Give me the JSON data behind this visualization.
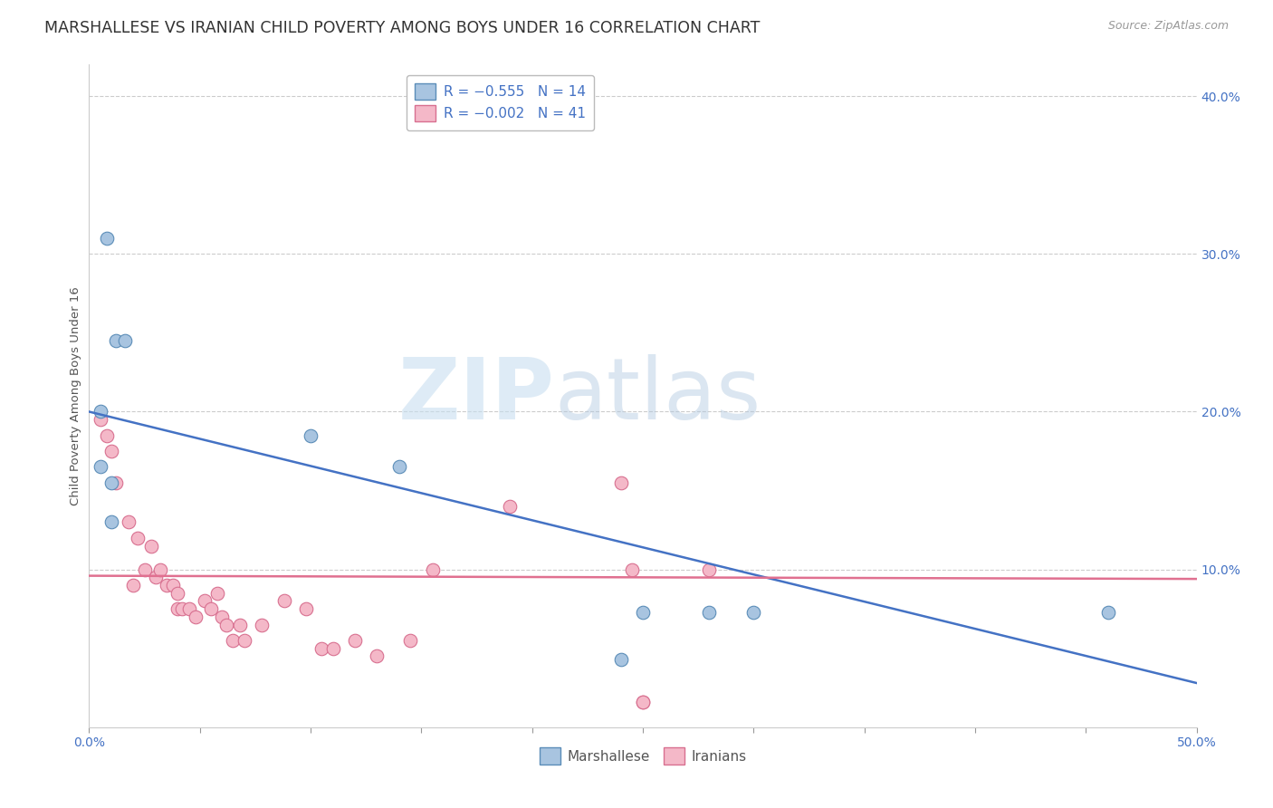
{
  "title": "MARSHALLESE VS IRANIAN CHILD POVERTY AMONG BOYS UNDER 16 CORRELATION CHART",
  "source": "Source: ZipAtlas.com",
  "ylabel": "Child Poverty Among Boys Under 16",
  "xlim": [
    0,
    0.5
  ],
  "ylim": [
    0,
    0.42
  ],
  "xticks": [
    0.0,
    0.05,
    0.1,
    0.15,
    0.2,
    0.25,
    0.3,
    0.35,
    0.4,
    0.45,
    0.5
  ],
  "yticks_right": [
    0.1,
    0.2,
    0.3,
    0.4
  ],
  "ytick_labels_right": [
    "10.0%",
    "20.0%",
    "30.0%",
    "40.0%"
  ],
  "grid_color": "#cccccc",
  "background_color": "#ffffff",
  "watermark_zip": "ZIP",
  "watermark_atlas": "atlas",
  "marshallese_color": "#a8c4e0",
  "iranian_color": "#f4b8c8",
  "marshallese_edge": "#5b8db8",
  "iranian_edge": "#d87090",
  "blue_line_color": "#4472c4",
  "pink_line_color": "#e07090",
  "legend_R_marshallese": "R = −0.555",
  "legend_N_marshallese": "N = 14",
  "legend_R_iranian": "R = −0.002",
  "legend_N_iranian": "N = 41",
  "marshallese_x": [
    0.008,
    0.012,
    0.016,
    0.005,
    0.005,
    0.01,
    0.01,
    0.1,
    0.14,
    0.28,
    0.3,
    0.46,
    0.25,
    0.24
  ],
  "marshallese_y": [
    0.31,
    0.245,
    0.245,
    0.2,
    0.165,
    0.155,
    0.13,
    0.185,
    0.165,
    0.073,
    0.073,
    0.073,
    0.073,
    0.043
  ],
  "iranians_x": [
    0.005,
    0.008,
    0.01,
    0.012,
    0.018,
    0.02,
    0.022,
    0.025,
    0.028,
    0.03,
    0.032,
    0.035,
    0.038,
    0.04,
    0.04,
    0.042,
    0.045,
    0.048,
    0.052,
    0.055,
    0.058,
    0.06,
    0.062,
    0.065,
    0.068,
    0.07,
    0.078,
    0.088,
    0.098,
    0.105,
    0.11,
    0.12,
    0.13,
    0.145,
    0.155,
    0.19,
    0.24,
    0.245,
    0.28,
    0.25,
    0.25
  ],
  "iranians_y": [
    0.195,
    0.185,
    0.175,
    0.155,
    0.13,
    0.09,
    0.12,
    0.1,
    0.115,
    0.095,
    0.1,
    0.09,
    0.09,
    0.085,
    0.075,
    0.075,
    0.075,
    0.07,
    0.08,
    0.075,
    0.085,
    0.07,
    0.065,
    0.055,
    0.065,
    0.055,
    0.065,
    0.08,
    0.075,
    0.05,
    0.05,
    0.055,
    0.045,
    0.055,
    0.1,
    0.14,
    0.155,
    0.1,
    0.1,
    0.016,
    0.016
  ],
  "blue_line_x": [
    0.0,
    0.5
  ],
  "blue_line_y": [
    0.2,
    0.028
  ],
  "pink_line_x": [
    0.0,
    0.5
  ],
  "pink_line_y": [
    0.096,
    0.094
  ],
  "marker_size": 110,
  "title_fontsize": 12.5,
  "axis_label_fontsize": 9.5,
  "tick_fontsize": 10,
  "legend_fontsize": 11,
  "text_color": "#4472c4"
}
